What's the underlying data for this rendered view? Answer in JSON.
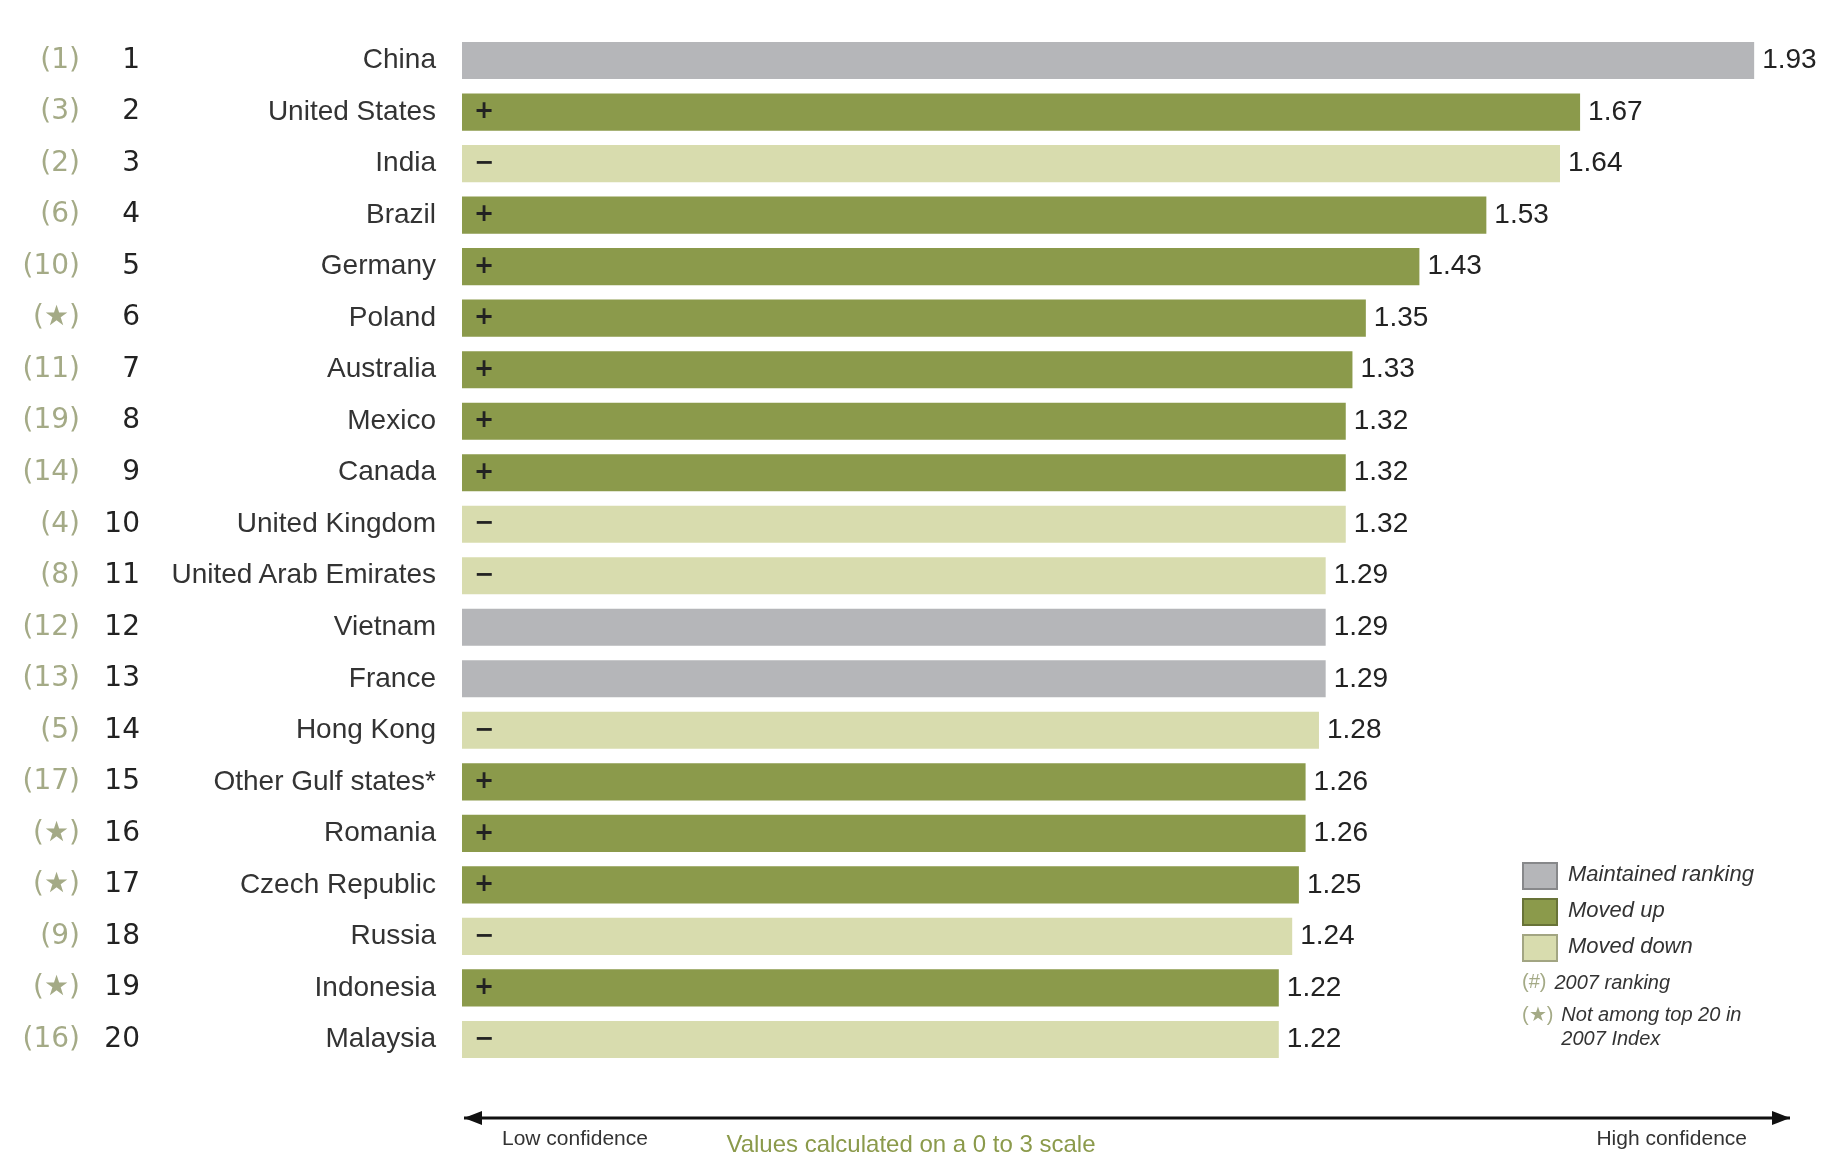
{
  "chart_data": {
    "type": "bar",
    "orientation": "horizontal",
    "xlabel": "Values calculated on a 0 to 3 scale",
    "categories": [
      "China",
      "United States",
      "India",
      "Brazil",
      "Germany",
      "Poland",
      "Australia",
      "Mexico",
      "Canada",
      "United Kingdom",
      "United Arab Emirates",
      "Vietnam",
      "France",
      "Hong Kong",
      "Other Gulf states*",
      "Romania",
      "Czech Republic",
      "Russia",
      "Indonesia",
      "Malaysia"
    ],
    "series": [
      {
        "name": "Maintained ranking",
        "color": "#b5b6b9",
        "values": [
          1.93,
          null,
          null,
          null,
          null,
          null,
          null,
          null,
          null,
          null,
          null,
          1.29,
          1.29,
          null,
          null,
          null,
          null,
          null,
          null,
          null
        ]
      },
      {
        "name": "Moved up",
        "color": "#8b9a4b",
        "values": [
          null,
          1.67,
          null,
          1.53,
          1.43,
          1.35,
          1.33,
          1.32,
          1.32,
          null,
          null,
          null,
          null,
          null,
          1.26,
          1.26,
          1.25,
          null,
          1.22,
          null
        ]
      },
      {
        "name": "Moved down",
        "color": "#d8dcae",
        "values": [
          null,
          null,
          1.64,
          null,
          null,
          null,
          null,
          null,
          null,
          1.32,
          1.29,
          null,
          null,
          1.28,
          null,
          null,
          null,
          1.24,
          null,
          1.22
        ]
      }
    ],
    "data_labels": true,
    "legend": "bottom right",
    "grid": false,
    "annotations": [
      "(#) 2007 ranking",
      "(★) Not among top 20 in 2007 Index",
      "Low confidence",
      "High confidence",
      "(1) 1",
      "(3) 2",
      "(2) 3",
      "(6) 4",
      "(10) 5",
      "(★) 6",
      "(11) 7",
      "(19) 8",
      "(14) 9",
      "(4) 10",
      "(8) 11",
      "(12) 12",
      "(13) 13",
      "(5) 14",
      "(17) 15",
      "(★) 16",
      "(★) 17",
      "(9) 18",
      "(★) 19",
      "(16) 20",
      {
        "text": "+",
        "y": "United States"
      },
      {
        "text": "−",
        "y": "India"
      },
      {
        "text": "+",
        "y": "Brazil"
      },
      {
        "text": "+",
        "y": "Germany"
      },
      {
        "text": "+",
        "y": "Poland"
      },
      {
        "text": "+",
        "y": "Australia"
      },
      {
        "text": "+",
        "y": "Mexico"
      },
      {
        "text": "+",
        "y": "Canada"
      },
      {
        "text": "−",
        "y": "United Kingdom"
      },
      {
        "text": "−",
        "y": "United Arab Emirates"
      },
      {
        "text": "−",
        "y": "Hong Kong"
      },
      {
        "text": "+",
        "y": "Other Gulf states*"
      },
      {
        "text": "+",
        "y": "Romania"
      },
      {
        "text": "+",
        "y": "Czech Republic"
      },
      {
        "text": "−",
        "y": "Russia"
      },
      {
        "text": "+",
        "y": "Indonesia"
      },
      {
        "text": "−",
        "y": "Malaysia"
      }
    ]
  }
}
